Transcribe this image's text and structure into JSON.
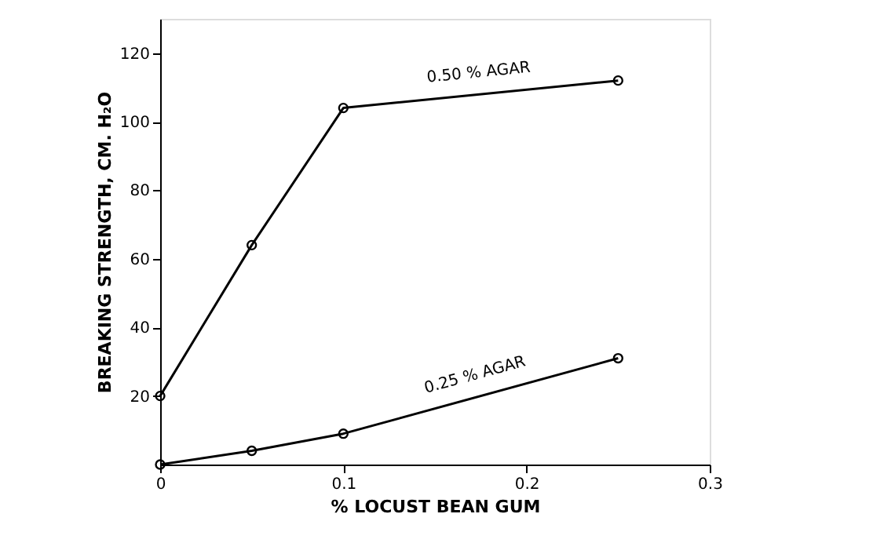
{
  "chart_data": {
    "type": "line",
    "xlabel": "% LOCUST BEAN GUM",
    "ylabel": "BREAKING STRENGTH, CM. H₂O",
    "x": [
      0,
      0.05,
      0.1,
      0.25
    ],
    "series": [
      {
        "name": "0.50 % AGAR",
        "color": "#000000",
        "values": [
          20,
          64,
          104,
          112
        ]
      },
      {
        "name": "0.25 % AGAR",
        "color": "#000000",
        "values": [
          0,
          4,
          9,
          31
        ]
      }
    ],
    "xlim": [
      0,
      0.3
    ],
    "ylim": [
      0,
      130
    ],
    "xticks": [
      0,
      0.1,
      0.2,
      0.3
    ],
    "yticks": [
      20,
      40,
      60,
      80,
      100,
      120
    ],
    "grid": false,
    "legend": false,
    "marker": "circle",
    "line_style": "solid"
  }
}
